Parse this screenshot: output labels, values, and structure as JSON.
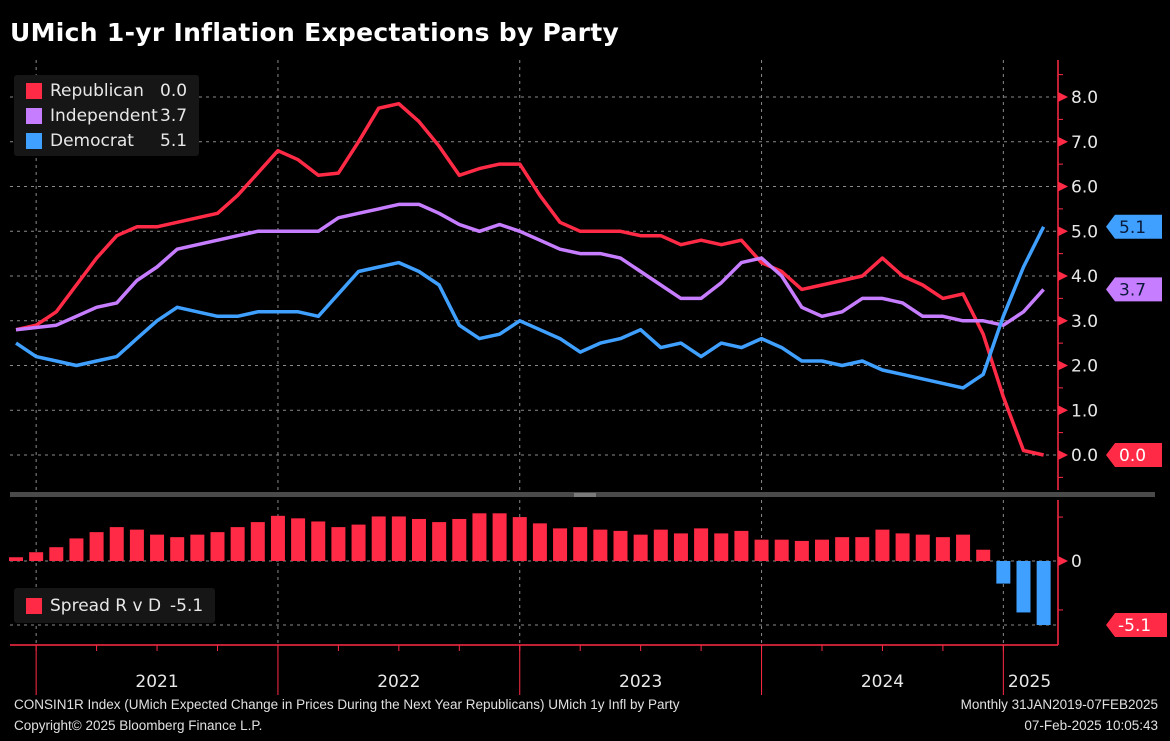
{
  "title": "UMich 1-yr Inflation Expectations by Party",
  "colors": {
    "republican": "#ff2a45",
    "independent": "#c77dff",
    "democrat": "#3fa0ff",
    "axis": "#ff2a45",
    "grid": "#8a8a8a"
  },
  "legend": [
    {
      "name": "Republican",
      "value": "0.0"
    },
    {
      "name": "Independent",
      "value": "3.7"
    },
    {
      "name": "Democrat",
      "value": "5.1"
    }
  ],
  "spread_legend": {
    "name": "Spread R v D",
    "value": "-5.1"
  },
  "chart_data": [
    {
      "type": "line",
      "title": "UMich 1-yr Inflation Expectations by Party",
      "frequency": "Monthly",
      "ylim": [
        -0.8,
        8.8
      ],
      "yticks": [
        "0.0",
        "1.0",
        "2.0",
        "3.0",
        "4.0",
        "5.0",
        "6.0",
        "7.0",
        "8.0"
      ],
      "ytick_values": [
        0,
        1,
        2,
        3,
        4,
        5,
        6,
        7,
        8
      ],
      "xtick_labels": [
        "2021",
        "2022",
        "2023",
        "2024",
        "2025"
      ],
      "grid": true,
      "legend_placement": "top-left",
      "series": [
        {
          "name": "Republican",
          "last_label": "0.0",
          "values": [
            2.8,
            2.9,
            3.2,
            3.8,
            4.4,
            4.9,
            5.1,
            5.1,
            5.2,
            5.3,
            5.4,
            5.8,
            6.3,
            6.8,
            6.6,
            6.25,
            6.3,
            7.0,
            7.75,
            7.85,
            7.45,
            6.9,
            6.25,
            6.4,
            6.5,
            6.5,
            5.8,
            5.2,
            5.0,
            5.0,
            5.0,
            4.9,
            4.9,
            4.7,
            4.8,
            4.7,
            4.8,
            4.3,
            4.1,
            3.7,
            3.8,
            3.9,
            4.0,
            4.4,
            4.0,
            3.8,
            3.5,
            3.6,
            2.7,
            1.3,
            0.1,
            0.0
          ]
        },
        {
          "name": "Independent",
          "last_label": "3.7",
          "values": [
            2.8,
            2.85,
            2.9,
            3.1,
            3.3,
            3.4,
            3.9,
            4.2,
            4.6,
            4.7,
            4.8,
            4.9,
            5.0,
            5.0,
            5.0,
            5.0,
            5.3,
            5.4,
            5.5,
            5.6,
            5.6,
            5.4,
            5.15,
            5.0,
            5.15,
            5.0,
            4.8,
            4.6,
            4.5,
            4.5,
            4.4,
            4.1,
            3.8,
            3.5,
            3.5,
            3.85,
            4.3,
            4.4,
            4.0,
            3.3,
            3.1,
            3.2,
            3.5,
            3.5,
            3.4,
            3.1,
            3.1,
            3.0,
            3.0,
            2.9,
            3.2,
            3.7
          ]
        },
        {
          "name": "Democrat",
          "last_label": "5.1",
          "values": [
            2.5,
            2.2,
            2.1,
            2.0,
            2.1,
            2.2,
            2.6,
            3.0,
            3.3,
            3.2,
            3.1,
            3.1,
            3.2,
            3.2,
            3.2,
            3.1,
            3.6,
            4.1,
            4.2,
            4.3,
            4.1,
            3.8,
            2.9,
            2.6,
            2.7,
            3.0,
            2.8,
            2.6,
            2.3,
            2.5,
            2.6,
            2.8,
            2.4,
            2.5,
            2.2,
            2.5,
            2.4,
            2.6,
            2.4,
            2.1,
            2.1,
            2.0,
            2.1,
            1.9,
            1.8,
            1.7,
            1.6,
            1.5,
            1.8,
            3.1,
            4.2,
            5.1
          ]
        }
      ]
    },
    {
      "type": "bar",
      "title": "Spread R v D",
      "ylim": [
        -6.5,
        5
      ],
      "yticks": [
        "0"
      ],
      "ytick_values": [
        0
      ],
      "last_label": "-5.1",
      "series": [
        {
          "name": "Spread R v D",
          "derived_from": "Republican - Democrat"
        }
      ]
    }
  ],
  "footer": {
    "source": "CONSIN1R Index (UMich Expected Change in Prices During the Next Year Republicans) UMich 1y Infl by Party",
    "range": "Monthly 31JAN2019-07FEB2025",
    "copyright": "Copyright© 2025 Bloomberg Finance L.P.",
    "timestamp": "07-Feb-2025 10:05:43"
  }
}
